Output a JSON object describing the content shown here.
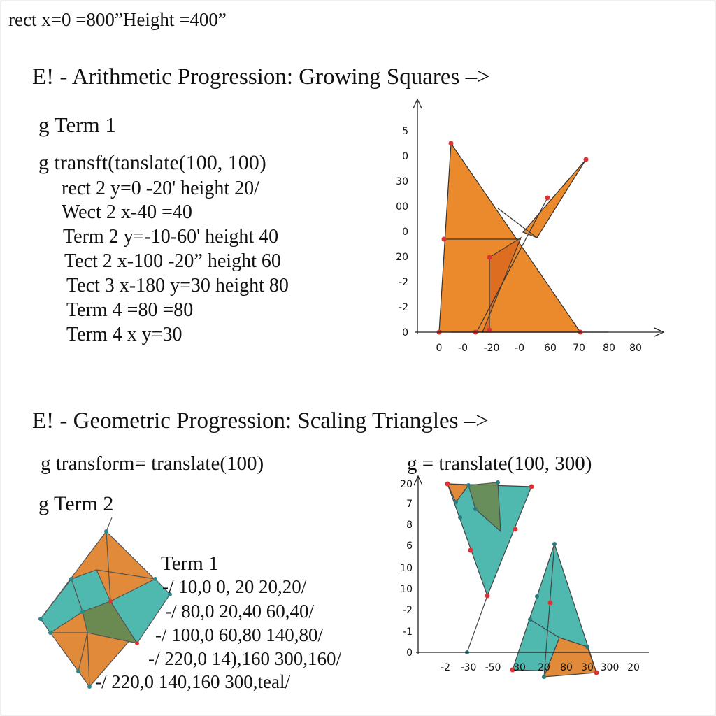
{
  "header": "rect x=0 =800”Height =400”",
  "sections": [
    {
      "title": "E! - Arithmetic Progression: Growing Squares –>",
      "lines": [
        "g Term 1",
        "g transft(tanslate(100, 100)",
        "rect 2 y=0 -20' height 20/",
        "Wect 2 x-40 =40",
        "Term 2 y=-10-60' height 40",
        "Tect 2 x-100 -20” height 60",
        "Tect 3 x-180 y=30 height 80",
        "Term 4 =80 =80",
        "Term 4 x y=30"
      ],
      "plot": {
        "y_labels": [
          "5",
          "0",
          "30",
          "00",
          "0",
          "20",
          "-2",
          "-2",
          "0"
        ],
        "x_labels": [
          "0",
          "-0",
          "-20",
          "-0",
          "60",
          "70",
          "80",
          "80"
        ]
      }
    },
    {
      "title": "E! - Geometric Progression: Scaling Triangles –>",
      "lines": [
        "g transform= translate(100)",
        "g Term 2",
        "g = translate(100, 300)",
        "Term 1",
        "-/ 10,0 0, 20 20,20/",
        "-/ 80,0 20,40 60,40/",
        "-/ 100,0 60,80 140,80/",
        "-/ 220,0 14),160 300,160/",
        "-/ 220,0 140,160 300,teal/"
      ],
      "plot": {
        "y_labels": [
          "20",
          "7",
          "8",
          "6",
          "10",
          "10",
          "-2",
          "-1",
          "0"
        ],
        "x_labels": [
          "-2",
          "-30",
          "-50",
          "30",
          "20",
          "80",
          "30",
          "300",
          "20"
        ]
      }
    }
  ]
}
